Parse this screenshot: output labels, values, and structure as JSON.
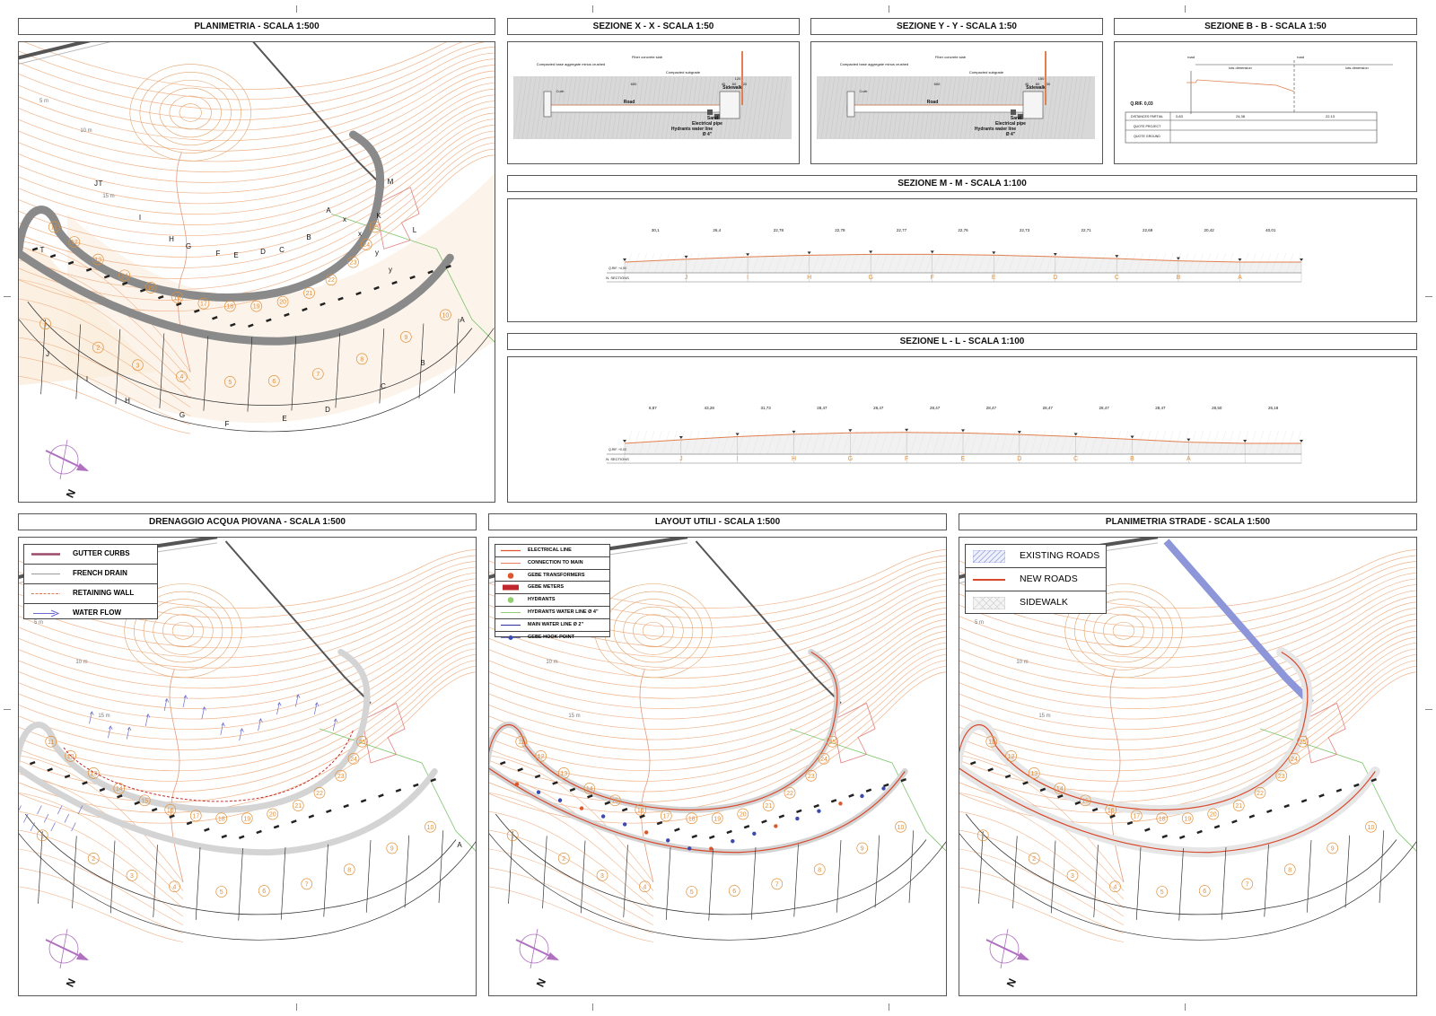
{
  "titles": {
    "planimetria": "PLANIMETRIA  -  SCALA 1:500",
    "sez_xx": "SEZIONE X - X  -  SCALA 1:50",
    "sez_yy": "SEZIONE Y - Y  -  SCALA 1:50",
    "sez_bb": "SEZIONE B - B  -  SCALA 1:50",
    "sez_mm": "SEZIONE M - M  -  SCALA 1:100",
    "sez_ll": "SEZIONE L - L  -  SCALA 1:100",
    "drenaggio": "DRENAGGIO ACQUA PIOVANA  -  SCALA 1:500",
    "layout": "LAYOUT UTILI  -  SCALA 1:500",
    "strade": "PLANIMETRIA STRADE  -  SCALA 1:500"
  },
  "plan": {
    "north_label": "N",
    "contour_labels": [
      "5 m",
      "10 m",
      "15 m"
    ],
    "inner_section_letters": [
      "T",
      "J",
      "I",
      "H",
      "G",
      "F",
      "E",
      "D",
      "C",
      "B",
      "A",
      "K",
      "M",
      "L",
      "T"
    ],
    "outer_section_letters": [
      "J",
      "I",
      "H",
      "G",
      "F",
      "E",
      "D",
      "C",
      "B",
      "A"
    ],
    "cut_letters": [
      "x",
      "x",
      "y",
      "y"
    ],
    "outer_lots": [
      "1",
      "2",
      "3",
      "4",
      "5",
      "6",
      "7",
      "8",
      "9",
      "10"
    ],
    "inner_lots": [
      "11",
      "12",
      "13",
      "14",
      "15",
      "16",
      "17",
      "18",
      "19",
      "20",
      "21",
      "22",
      "23",
      "24",
      "25"
    ]
  },
  "sez_xx": {
    "labels": [
      "Compacted base aggregate minus crushed",
      "Fiber concrete slab",
      "Compacted subgrade",
      "Curb",
      "Road",
      "Sidewalk",
      "Sand",
      "Electrical pipe",
      "Hydrants water line",
      "Ø 4\""
    ],
    "dims": [
      "600",
      "120",
      "40",
      "60",
      "20"
    ]
  },
  "sez_yy": {
    "labels": [
      "Compacted base aggregate minus crushed",
      "Fiber concrete slab",
      "Compacted subgrade",
      "Curb",
      "Road",
      "Sidewalk",
      "Sand",
      "Electrical pipe",
      "Hydrants water line",
      "Ø 4\""
    ],
    "dims": [
      "600",
      "150",
      "40",
      "80",
      "30"
    ]
  },
  "sez_bb": {
    "head": [
      "road",
      "lots dimension",
      "road",
      "lots dimension"
    ],
    "rows": [
      "DISTANCES PARTIAL",
      "QUOTE PROJECT",
      "QUOTE GROUND"
    ],
    "ref": "Q.RIF. 0,03",
    "partials": [
      "0,83",
      "24,38",
      "22,13"
    ]
  },
  "sez_mm": {
    "partials": [
      "30,1",
      "26,4",
      "22,78",
      "22,78",
      "22,77",
      "22,76",
      "22,73",
      "22,71",
      "22,69",
      "20,42",
      "40,01"
    ],
    "letters": [
      "J",
      "I",
      "H",
      "G",
      "F",
      "E",
      "D",
      "C",
      "B",
      "A"
    ],
    "row_label": "N. SECTIONS",
    "ref": "Q.RIF. +4,50"
  },
  "sez_ll": {
    "partials": [
      "8,87",
      "43,28",
      "31,73",
      "28,47",
      "28,47",
      "28,47",
      "28,47",
      "28,47",
      "28,47",
      "28,47",
      "28,50",
      "26,18"
    ],
    "letters": [
      "J",
      "I",
      "H",
      "G",
      "F",
      "E",
      "D",
      "C",
      "B",
      "A"
    ],
    "row_label": "N. SECTIONS",
    "ref": "Q.RIF. +0,00"
  },
  "legend_drain": [
    {
      "label": "GUTTER CURBS",
      "icon": "gutter-curb-line",
      "color": "#9b4a6a"
    },
    {
      "label": "FRENCH DRAIN",
      "icon": "french-drain-line",
      "color": "#999999"
    },
    {
      "label": "RETAINING WALL",
      "icon": "retaining-wall-line",
      "color": "#d9795c"
    },
    {
      "label": "WATER FLOW",
      "icon": "water-flow-arrow",
      "color": "#6a6ad0"
    }
  ],
  "legend_utils": [
    {
      "label": "ELECTRICAL LINE",
      "icon": "electrical-line",
      "color": "#e0562b"
    },
    {
      "label": "CONNECTION TO MAIN",
      "icon": "connection-line",
      "color": "#e0562b"
    },
    {
      "label": "GEBE TRANSFORMERS",
      "icon": "transformer-dot",
      "color": "#e0562b"
    },
    {
      "label": "GEBE METERS",
      "icon": "meter-box",
      "color": "#c0282d"
    },
    {
      "label": "HYDRANTS",
      "icon": "hydrant-dot",
      "color": "#8fcf6e"
    },
    {
      "label": "HYDRANTS WATER LINE  Ø 4\"",
      "icon": "hydrant-water-line",
      "color": "#8fcf6e"
    },
    {
      "label": "MAIN WATER LINE Ø 2\"",
      "icon": "main-water-line",
      "color": "#2b2b9b"
    },
    {
      "label": "GEBE HOOK POINT",
      "icon": "hook-point",
      "color": "#3a4ab0"
    }
  ],
  "legend_roads": [
    {
      "label": "EXISTING ROADS",
      "icon": "existing-roads-hatch",
      "color": "#8c96d8"
    },
    {
      "label": "NEW ROADS",
      "icon": "new-roads-line",
      "color": "#d9482b"
    },
    {
      "label": "SIDEWALK",
      "icon": "sidewalk-hatch",
      "color": "#cccccc"
    }
  ],
  "colors": {
    "contour": "#f0b38a",
    "terrain_fill": "#fbeede",
    "road_grey": "#8a8a8a",
    "profile": "#e08050",
    "section_letter": "#e0903a",
    "compass": "#b070c0"
  }
}
